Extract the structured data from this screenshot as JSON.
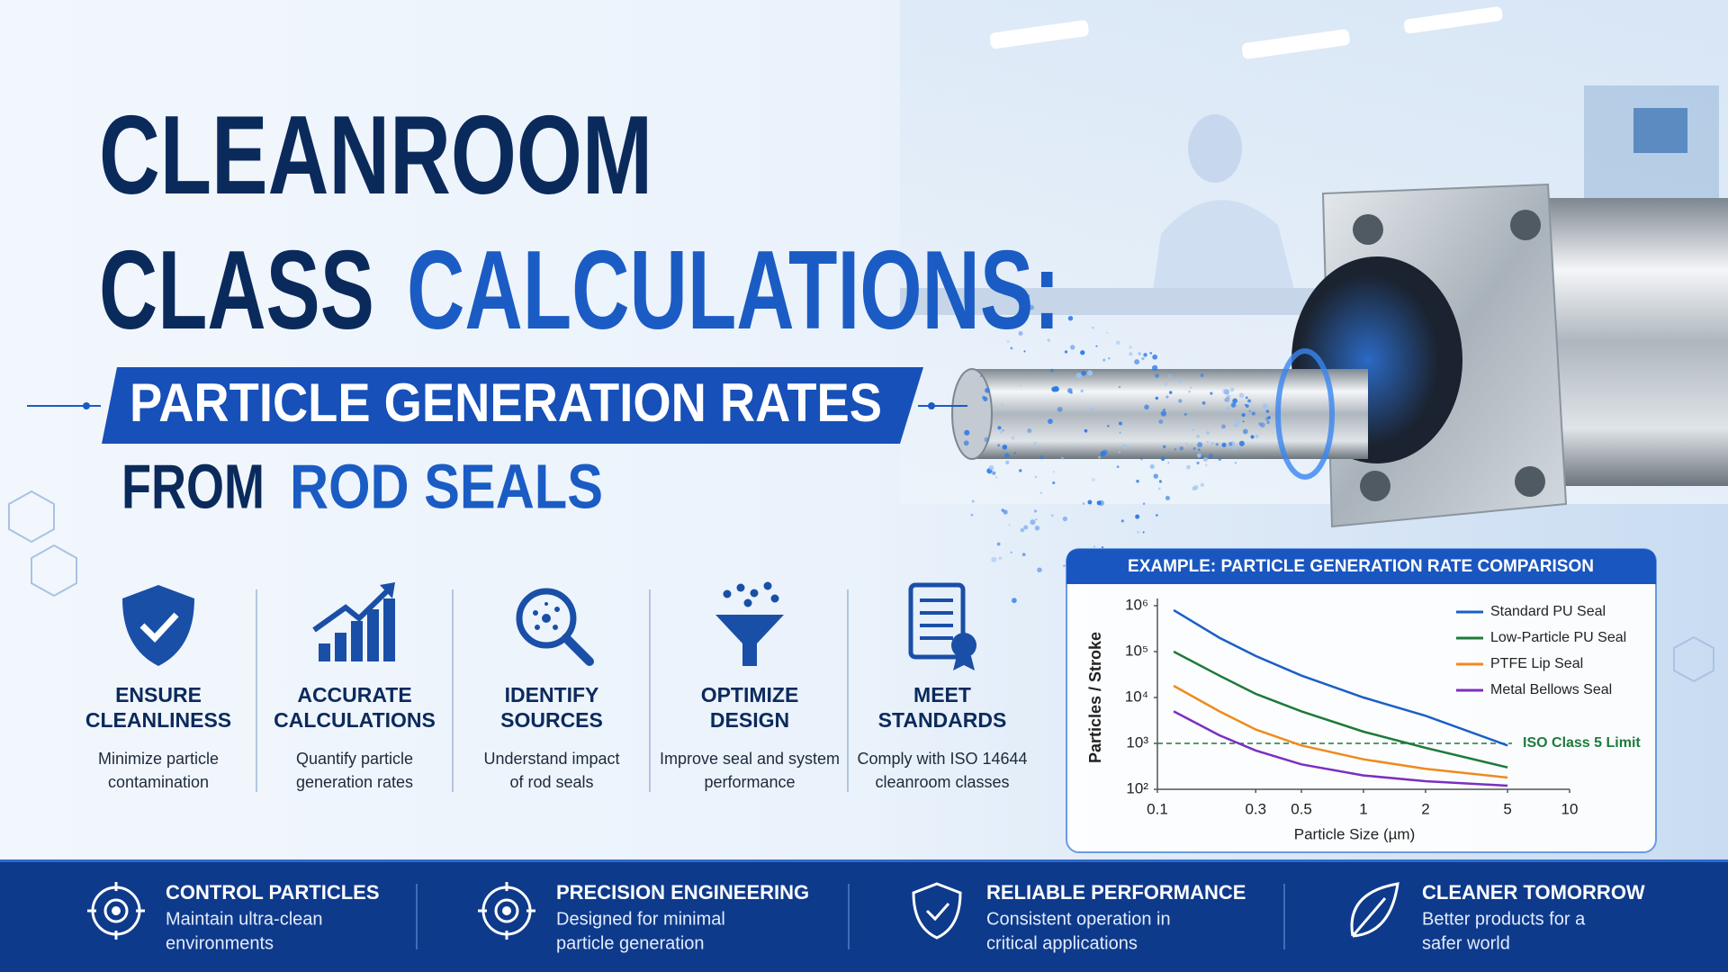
{
  "header": {
    "title_line1": "CLEANROOM",
    "title_line2a": "CLASS",
    "title_line2b": "CALCULATIONS:",
    "banner": "PARTICLE GENERATION RATES",
    "subtitle_a": "FROM",
    "subtitle_b": "ROD SEALS"
  },
  "features": [
    {
      "title": [
        "ENSURE",
        "CLEANLINESS"
      ],
      "text": [
        "Minimize particle",
        "contamination"
      ]
    },
    {
      "title": [
        "ACCURATE",
        "CALCULATIONS"
      ],
      "text": [
        "Quantify particle",
        "generation rates"
      ]
    },
    {
      "title": [
        "IDENTIFY",
        "SOURCES"
      ],
      "text": [
        "Understand impact",
        "of rod seals"
      ]
    },
    {
      "title": [
        "OPTIMIZE",
        "DESIGN"
      ],
      "text": [
        "Improve seal and system",
        "performance"
      ]
    },
    {
      "title": [
        "MEET",
        "STANDARDS"
      ],
      "text": [
        "Comply with ISO 14644",
        "cleanroom classes"
      ]
    }
  ],
  "chart_data": {
    "type": "line",
    "title": "EXAMPLE: PARTICLE GENERATION RATE COMPARISON",
    "x_label": "Particle Size (µm)",
    "y_label": "Particles / Stroke",
    "xscale": "log",
    "yscale": "log",
    "xlim": [
      0.1,
      10
    ],
    "ylim": [
      100,
      1000000
    ],
    "xticks": [
      0.1,
      0.3,
      0.5,
      1,
      2,
      5,
      10
    ],
    "yticks": [
      {
        "value": 100,
        "label": "10²"
      },
      {
        "value": 1000,
        "label": "10³"
      },
      {
        "value": 10000,
        "label": "10⁴"
      },
      {
        "value": 100000,
        "label": "10⁵"
      },
      {
        "value": 1000000,
        "label": "10⁶"
      }
    ],
    "x": [
      0.12,
      0.2,
      0.3,
      0.5,
      1,
      2,
      5
    ],
    "series": [
      {
        "name": "Standard PU Seal",
        "color": "#1a5fc8",
        "values": [
          800000,
          200000,
          80000,
          30000,
          10000,
          4000,
          900
        ]
      },
      {
        "name": "Low-Particle PU Seal",
        "color": "#1d7a3a",
        "values": [
          100000,
          30000,
          12000,
          5000,
          1800,
          800,
          300
        ]
      },
      {
        "name": "PTFE Lip Seal",
        "color": "#f08a1c",
        "values": [
          18000,
          5000,
          2000,
          900,
          450,
          280,
          180
        ]
      },
      {
        "name": "Metal Bellows Seal",
        "color": "#7b2fbf",
        "values": [
          5000,
          1500,
          700,
          350,
          200,
          150,
          120
        ]
      }
    ],
    "reference_line": {
      "value": 1000,
      "label": "ISO Class 5 Limit",
      "color": "#1d7a3a"
    },
    "legend": "upper right"
  },
  "footer": [
    {
      "title": "CONTROL PARTICLES",
      "text": [
        "Maintain ultra-clean",
        "environments"
      ]
    },
    {
      "title": "PRECISION ENGINEERING",
      "text": [
        "Designed for minimal",
        "particle generation"
      ]
    },
    {
      "title": "RELIABLE PERFORMANCE",
      "text": [
        "Consistent operation in",
        "critical applications"
      ]
    },
    {
      "title": "CLEANER TOMORROW",
      "text": [
        "Better products for a",
        "safer world"
      ]
    }
  ]
}
